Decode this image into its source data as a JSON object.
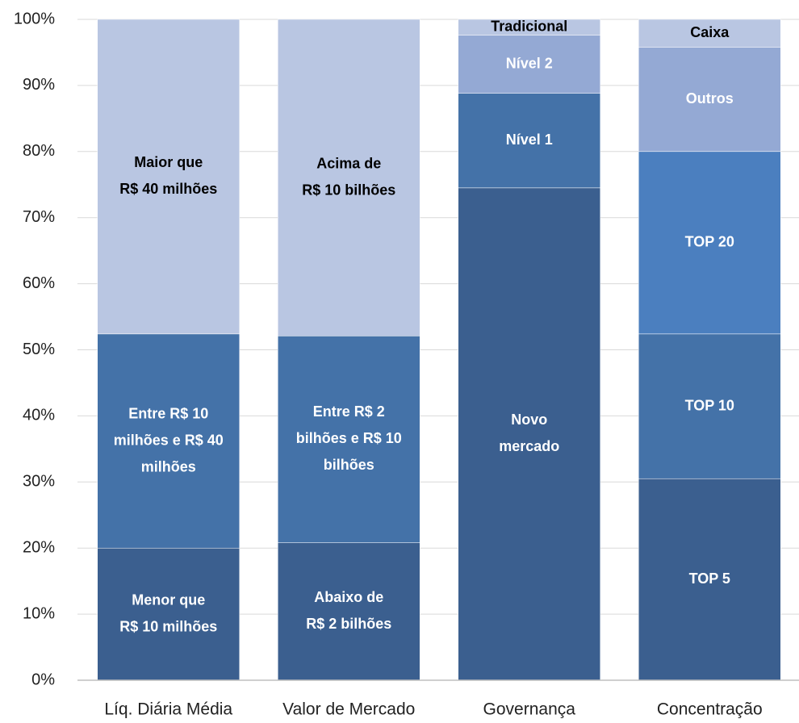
{
  "chart_data": {
    "type": "stacked_bar",
    "ylim": [
      0,
      100
    ],
    "yticks": [
      {
        "value": 0,
        "label": "0%"
      },
      {
        "value": 10,
        "label": "10%"
      },
      {
        "value": 20,
        "label": "20%"
      },
      {
        "value": 30,
        "label": "30%"
      },
      {
        "value": 40,
        "label": "40%"
      },
      {
        "value": 50,
        "label": "50%"
      },
      {
        "value": 60,
        "label": "60%"
      },
      {
        "value": 70,
        "label": "70%"
      },
      {
        "value": 80,
        "label": "80%"
      },
      {
        "value": 90,
        "label": "90%"
      },
      {
        "value": 100,
        "label": "100%"
      }
    ],
    "grid": true,
    "bars": [
      {
        "category": "Líq. Diária Média",
        "segments": [
          {
            "label": [
              "Menor que",
              "R$ 10 milhões"
            ],
            "value": 20,
            "color": "#3b5f8f",
            "label_color": "#ffffff"
          },
          {
            "label": [
              "Entre R$ 10",
              "milhões e R$ 40",
              "milhões"
            ],
            "value": 32.4,
            "color": "#4472a8",
            "label_color": "#ffffff"
          },
          {
            "label": [
              "Maior que",
              "R$ 40 milhões"
            ],
            "value": 47.6,
            "color": "#b9c6e2",
            "label_color": "#000000"
          }
        ]
      },
      {
        "category": "Valor de Mercado",
        "segments": [
          {
            "label": [
              "Abaixo de",
              "R$ 2 bilhões"
            ],
            "value": 20.8,
            "color": "#3b5f8f",
            "label_color": "#ffffff"
          },
          {
            "label": [
              "Entre R$ 2",
              "bilhões e R$ 10",
              "bilhões"
            ],
            "value": 31.3,
            "color": "#4472a8",
            "label_color": "#ffffff"
          },
          {
            "label": [
              "Acima de",
              "R$ 10 bilhões"
            ],
            "value": 47.9,
            "color": "#b9c6e2",
            "label_color": "#000000"
          }
        ]
      },
      {
        "category": "Governança",
        "segments": [
          {
            "label": [
              "Novo",
              "mercado"
            ],
            "value": 74.5,
            "color": "#3b5f8f",
            "label_color": "#ffffff"
          },
          {
            "label": [
              "Nível 1"
            ],
            "value": 14.3,
            "color": "#4472a8",
            "label_color": "#ffffff"
          },
          {
            "label": [
              "Nível 2"
            ],
            "value": 8.8,
            "color": "#94a9d4",
            "label_color": "#ffffff"
          },
          {
            "label": [
              "Tradicional"
            ],
            "value": 2.4,
            "color": "#b9c6e2",
            "label_color": "#000000"
          }
        ]
      },
      {
        "category": "Concentração",
        "segments": [
          {
            "label": [
              "TOP 5"
            ],
            "value": 30.5,
            "color": "#3b5f8f",
            "label_color": "#ffffff"
          },
          {
            "label": [
              "TOP 10"
            ],
            "value": 21.9,
            "color": "#4472a8",
            "label_color": "#ffffff"
          },
          {
            "label": [
              "TOP 20"
            ],
            "value": 27.6,
            "color": "#4b7fbf",
            "label_color": "#ffffff"
          },
          {
            "label": [
              "Outros"
            ],
            "value": 15.8,
            "color": "#94a9d4",
            "label_color": "#ffffff"
          },
          {
            "label": [
              "Caixa"
            ],
            "value": 4.2,
            "color": "#b9c6e2",
            "label_color": "#000000"
          }
        ]
      }
    ]
  }
}
